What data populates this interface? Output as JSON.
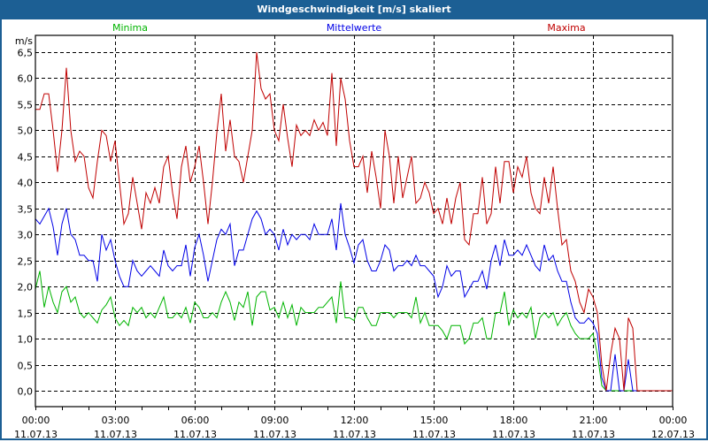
{
  "window": {
    "title": "Windgeschwindigkeit [m/s] skaliert"
  },
  "chart_data": {
    "type": "line",
    "title": "Windgeschwindigkeit [m/s] skaliert",
    "ylabel": "m/s",
    "xlabel": "",
    "ylim": [
      0,
      6.5
    ],
    "xlim_hours": [
      0,
      24
    ],
    "interval_minutes": 10,
    "grid": true,
    "legend_placement": "top",
    "yticks": [
      "0,0",
      "0,5",
      "1,0",
      "1,5",
      "2,0",
      "2,5",
      "3,0",
      "3,5",
      "4,0",
      "4,5",
      "5,0",
      "5,5",
      "6,0",
      "6,5"
    ],
    "xticks": [
      {
        "time": "00:00",
        "date": "11.07.13"
      },
      {
        "time": "03:00",
        "date": "11.07.13"
      },
      {
        "time": "06:00",
        "date": "11.07.13"
      },
      {
        "time": "09:00",
        "date": "11.07.13"
      },
      {
        "time": "12:00",
        "date": "11.07.13"
      },
      {
        "time": "15:00",
        "date": "11.07.13"
      },
      {
        "time": "18:00",
        "date": "11.07.13"
      },
      {
        "time": "21:00",
        "date": "11.07.13"
      },
      {
        "time": "00:00",
        "date": "12.07.13"
      }
    ],
    "series": [
      {
        "name": "Minima",
        "color": "#00b400",
        "values": [
          1.95,
          2.3,
          1.6,
          2.0,
          1.7,
          1.5,
          1.9,
          2.0,
          1.7,
          1.8,
          1.5,
          1.4,
          1.5,
          1.4,
          1.3,
          1.55,
          1.65,
          1.8,
          1.4,
          1.25,
          1.35,
          1.25,
          1.6,
          1.5,
          1.6,
          1.4,
          1.5,
          1.4,
          1.6,
          1.8,
          1.4,
          1.4,
          1.5,
          1.4,
          1.6,
          1.3,
          1.7,
          1.6,
          1.4,
          1.4,
          1.5,
          1.4,
          1.7,
          1.9,
          1.7,
          1.35,
          1.7,
          1.6,
          1.9,
          1.25,
          1.8,
          1.9,
          1.9,
          1.55,
          1.6,
          1.4,
          1.7,
          1.4,
          1.65,
          1.25,
          1.6,
          1.5,
          1.5,
          1.5,
          1.6,
          1.6,
          1.7,
          1.8,
          1.3,
          2.1,
          1.4,
          1.4,
          1.35,
          1.6,
          1.6,
          1.4,
          1.25,
          1.25,
          1.5,
          1.5,
          1.5,
          1.4,
          1.5,
          1.5,
          1.5,
          1.4,
          1.8,
          1.3,
          1.5,
          1.25,
          1.25,
          1.25,
          1.15,
          1.0,
          1.25,
          1.25,
          1.25,
          0.9,
          1.0,
          1.3,
          1.3,
          1.4,
          1.0,
          1.0,
          1.5,
          1.5,
          1.9,
          1.25,
          1.55,
          1.4,
          1.5,
          1.4,
          1.6,
          1.0,
          1.4,
          1.5,
          1.4,
          1.5,
          1.25,
          1.4,
          1.5,
          1.25,
          1.1,
          1.0,
          1.0,
          1.0,
          1.1,
          0.7,
          0.1,
          0,
          0,
          0,
          0,
          0,
          0,
          0,
          0,
          0,
          0,
          0,
          0,
          0,
          0,
          0,
          0
        ]
      },
      {
        "name": "Mittelwerte",
        "color": "#0000e6",
        "values": [
          3.3,
          3.2,
          3.35,
          3.5,
          3.15,
          2.6,
          3.2,
          3.5,
          3.0,
          2.9,
          2.6,
          2.6,
          2.5,
          2.5,
          2.1,
          3.0,
          2.7,
          2.9,
          2.5,
          2.2,
          2.0,
          2.0,
          2.5,
          2.3,
          2.2,
          2.3,
          2.4,
          2.3,
          2.2,
          2.7,
          2.4,
          2.3,
          2.4,
          2.4,
          2.8,
          2.2,
          2.75,
          3.0,
          2.6,
          2.1,
          2.5,
          2.9,
          3.1,
          3.0,
          3.2,
          2.4,
          2.7,
          2.7,
          3.0,
          3.3,
          3.45,
          3.3,
          3.0,
          3.1,
          3.0,
          2.7,
          3.1,
          2.8,
          3.0,
          2.9,
          3.0,
          3.0,
          2.9,
          3.2,
          3.0,
          3.0,
          3.0,
          3.3,
          2.7,
          3.6,
          3.0,
          2.75,
          2.45,
          2.8,
          2.9,
          2.5,
          2.3,
          2.3,
          2.5,
          2.8,
          2.7,
          2.3,
          2.4,
          2.4,
          2.5,
          2.4,
          2.6,
          2.4,
          2.4,
          2.3,
          2.2,
          1.8,
          2.0,
          2.4,
          2.2,
          2.3,
          2.3,
          1.8,
          1.95,
          2.1,
          2.1,
          2.3,
          1.95,
          2.5,
          2.8,
          2.4,
          2.9,
          2.6,
          2.6,
          2.7,
          2.6,
          2.8,
          2.6,
          2.4,
          2.3,
          2.8,
          2.5,
          2.6,
          2.3,
          2.1,
          2.1,
          1.7,
          1.4,
          1.3,
          1.3,
          1.4,
          1.3,
          1.1,
          0.25,
          0,
          0,
          0.7,
          0,
          0,
          0.6,
          0,
          0,
          0,
          0,
          0,
          0,
          0,
          0,
          0,
          0
        ]
      },
      {
        "name": "Maxima",
        "color": "#c00000",
        "values": [
          5.4,
          5.4,
          5.7,
          5.7,
          5.0,
          4.2,
          5.0,
          6.2,
          5.0,
          4.4,
          4.6,
          4.5,
          3.9,
          3.7,
          4.4,
          5.0,
          4.9,
          4.4,
          4.8,
          4.0,
          3.2,
          3.4,
          4.1,
          3.6,
          3.1,
          3.8,
          3.6,
          3.9,
          3.6,
          4.3,
          4.5,
          3.8,
          3.3,
          4.3,
          4.7,
          4.0,
          4.3,
          4.7,
          4.0,
          3.2,
          4.0,
          4.95,
          5.7,
          4.6,
          5.2,
          4.5,
          4.4,
          4.0,
          4.5,
          5.0,
          6.5,
          5.8,
          5.6,
          5.7,
          5.0,
          4.8,
          5.5,
          4.85,
          4.3,
          5.1,
          4.9,
          5.0,
          4.9,
          5.2,
          5.0,
          5.15,
          4.9,
          6.1,
          4.7,
          6.0,
          5.6,
          4.8,
          4.3,
          4.3,
          4.5,
          3.8,
          4.6,
          4.1,
          3.5,
          5.0,
          4.5,
          3.6,
          4.5,
          3.7,
          4.1,
          4.5,
          3.6,
          3.7,
          4.0,
          3.8,
          3.4,
          3.5,
          3.2,
          3.7,
          3.2,
          3.7,
          4.0,
          2.9,
          2.8,
          3.4,
          3.4,
          4.1,
          3.2,
          3.4,
          4.3,
          3.6,
          4.4,
          4.4,
          3.8,
          4.3,
          4.1,
          4.5,
          3.8,
          3.5,
          3.4,
          4.1,
          3.6,
          4.3,
          3.5,
          2.8,
          2.9,
          2.3,
          2.1,
          1.7,
          1.5,
          1.95,
          1.8,
          1.5,
          0.5,
          0,
          0.7,
          1.2,
          1.0,
          0,
          1.4,
          1.2,
          0,
          0,
          0,
          0,
          0,
          0,
          0,
          0,
          0
        ]
      }
    ]
  }
}
